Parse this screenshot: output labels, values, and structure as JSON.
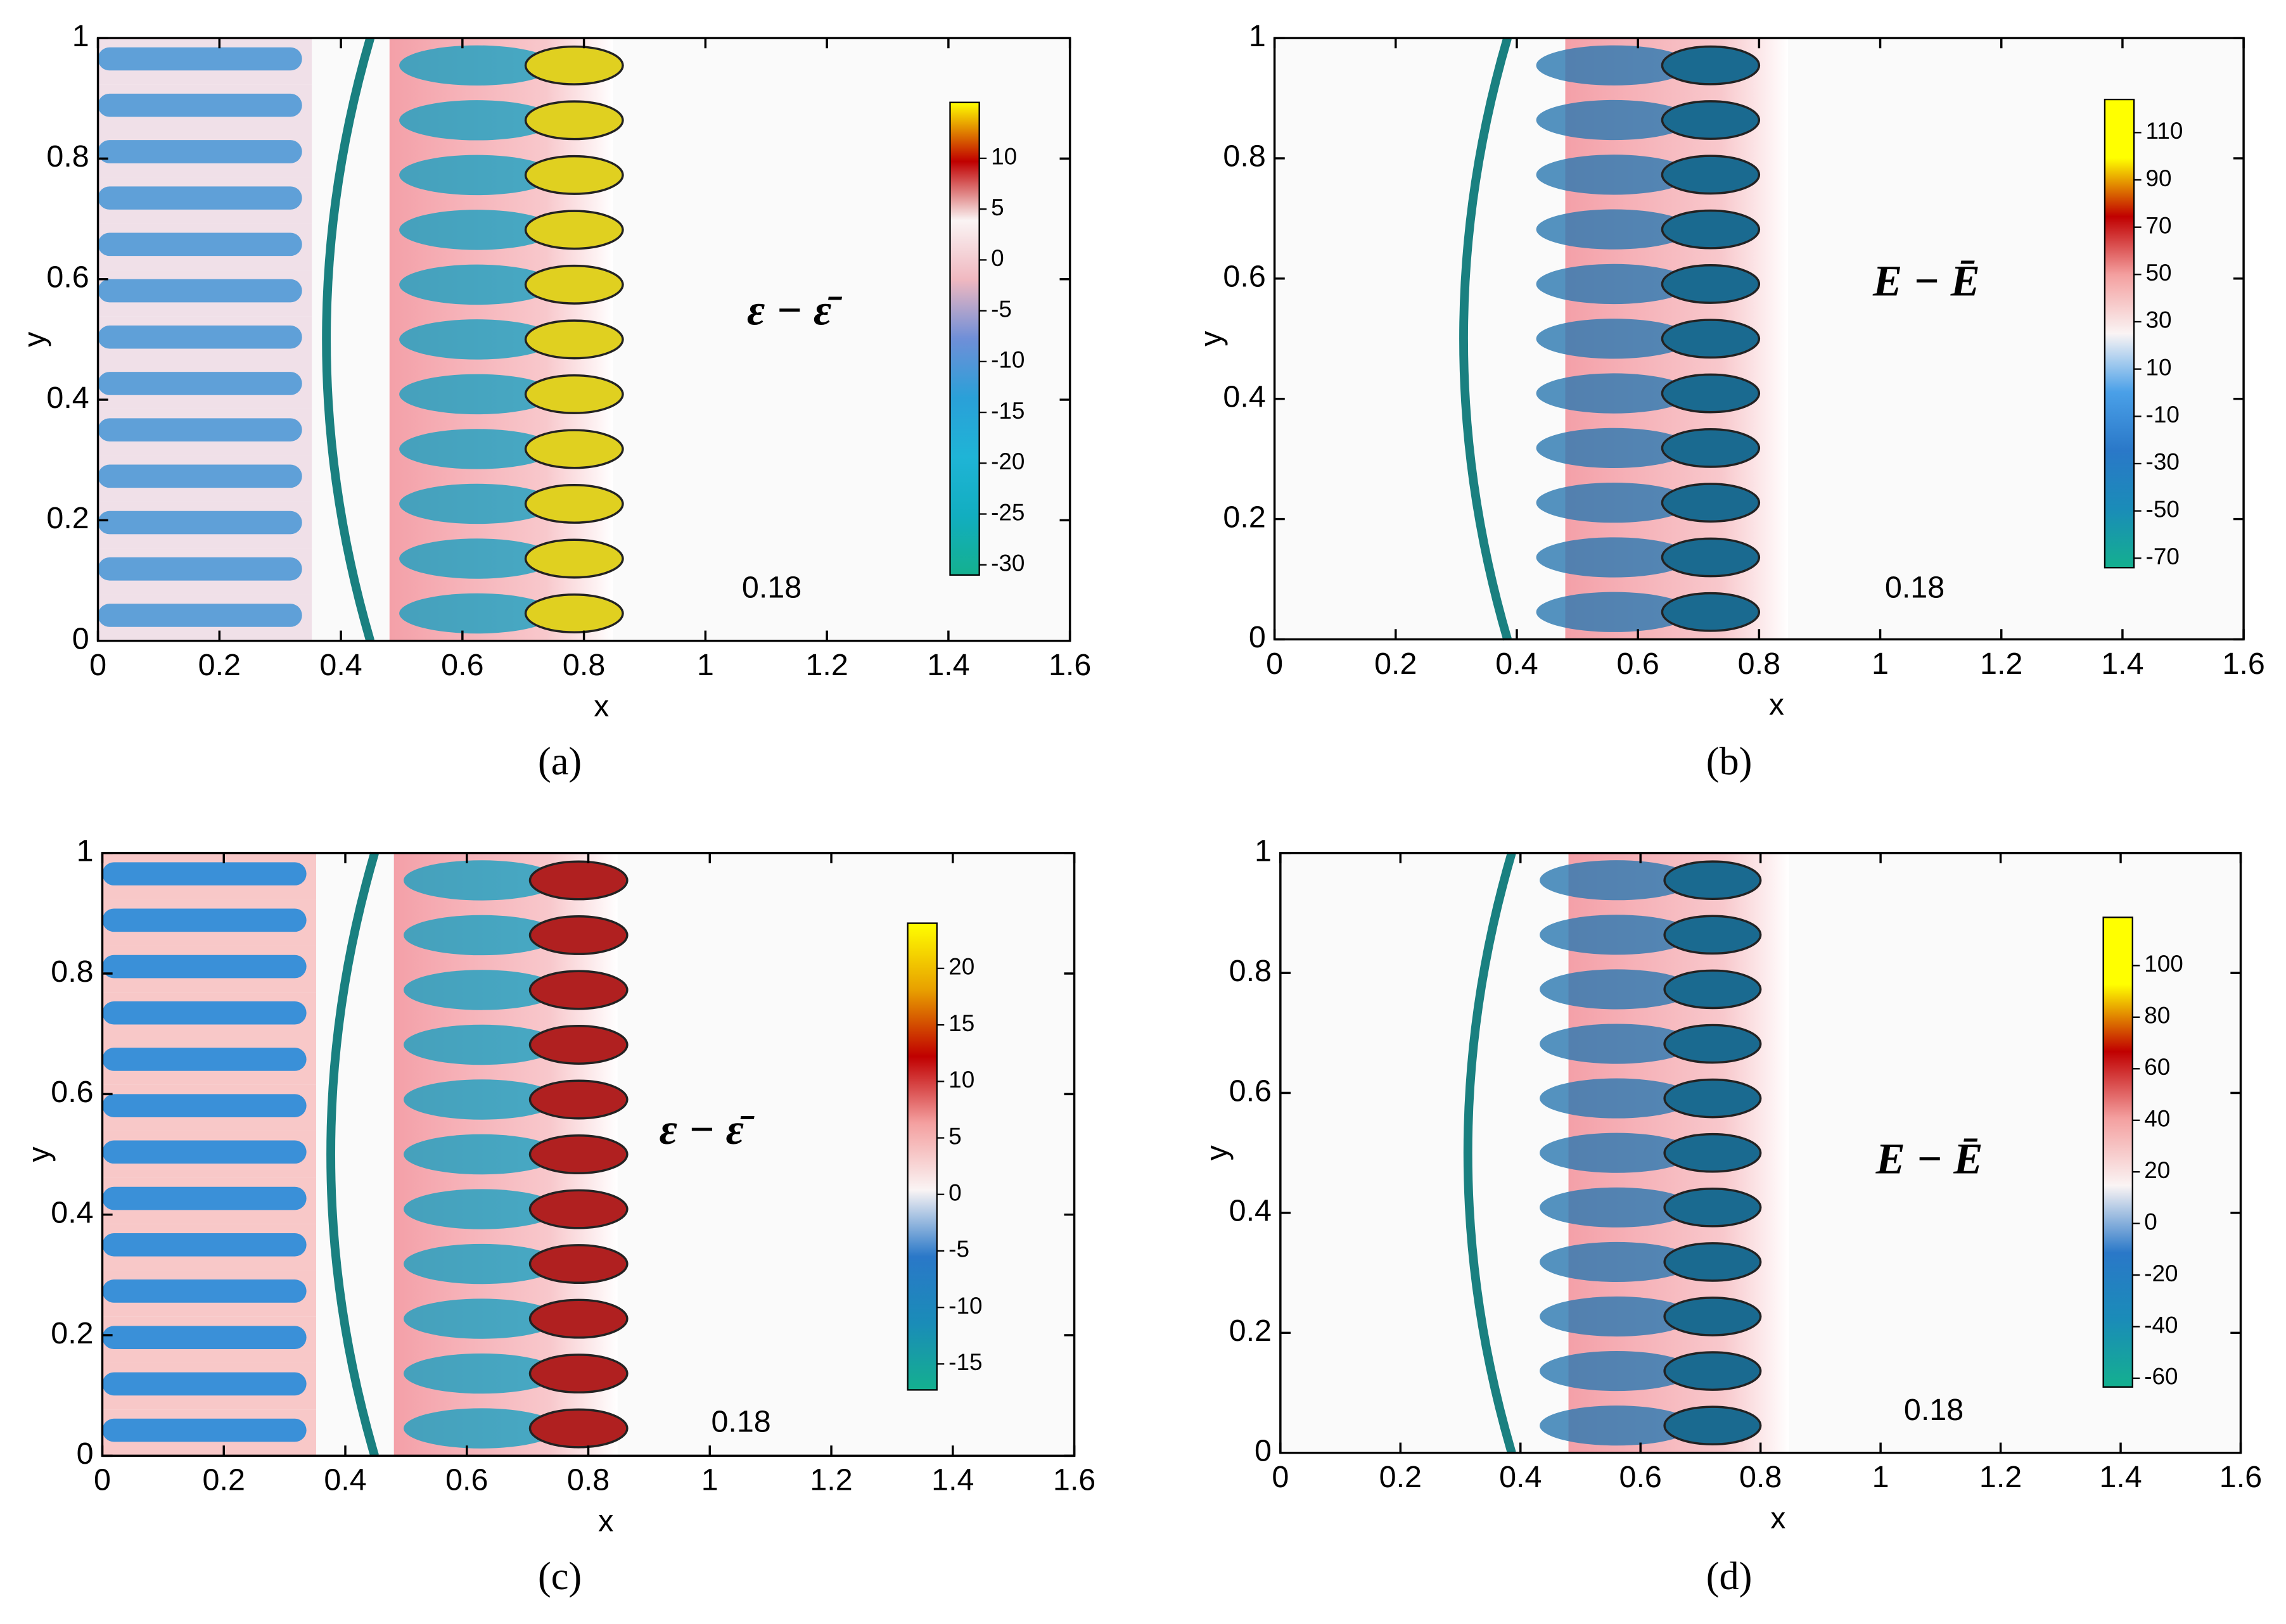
{
  "chart_data": [
    {
      "type": "contour",
      "title": "ε − ε̄",
      "annotation": "0.18",
      "caption": "(a)",
      "xlabel": "x",
      "ylabel": "y",
      "xlim": [
        0,
        1.6
      ],
      "ylim": [
        0,
        1
      ],
      "xticks": [
        0,
        0.2,
        0.4,
        0.6,
        0.8,
        1,
        1.2,
        1.4,
        1.6
      ],
      "yticks": [
        0,
        0.2,
        0.4,
        0.6,
        0.8,
        1
      ],
      "clim": [
        -31,
        15.5
      ],
      "cticks": [
        -30,
        -25,
        -20,
        -15,
        -10,
        -5,
        0,
        5,
        10
      ],
      "colormap": [
        "#14b08f",
        "#12aec0",
        "#1fb4d6",
        "#2aa0d8",
        "#6f8fd8",
        "#f0b8c0",
        "#faf4f4",
        "#c00000",
        "#ffff00"
      ]
    },
    {
      "type": "contour",
      "title": "E − Ē",
      "annotation": "0.18",
      "caption": "(b)",
      "xlabel": "x",
      "ylabel": "y",
      "xlim": [
        0,
        1.6
      ],
      "ylim": [
        0,
        1
      ],
      "xticks": [
        0,
        0.2,
        0.4,
        0.6,
        0.8,
        1,
        1.2,
        1.4,
        1.6
      ],
      "yticks": [
        0,
        0.2,
        0.4,
        0.6,
        0.8,
        1
      ],
      "clim": [
        -74,
        124
      ],
      "cticks": [
        -70,
        -50,
        -30,
        -10,
        10,
        30,
        50,
        70,
        90,
        110
      ],
      "colormap": [
        "#14b08f",
        "#1a8cb8",
        "#2a78c8",
        "#4aa0e8",
        "#faf4f4",
        "#f4a0a0",
        "#c00000",
        "#ffff00",
        "#ffff00"
      ]
    },
    {
      "type": "contour",
      "title": "ε − ε̄",
      "annotation": "0.18",
      "caption": "(c)",
      "xlabel": "x",
      "ylabel": "y",
      "xlim": [
        0,
        1.6
      ],
      "ylim": [
        0,
        1
      ],
      "xticks": [
        0,
        0.2,
        0.4,
        0.6,
        0.8,
        1,
        1.2,
        1.4,
        1.6
      ],
      "yticks": [
        0,
        0.2,
        0.4,
        0.6,
        0.8,
        1
      ],
      "clim": [
        -17.3,
        24
      ],
      "cticks": [
        -15,
        -10,
        -5,
        0,
        5,
        10,
        15,
        20
      ],
      "colormap": [
        "#14b08f",
        "#1a8cb8",
        "#2a78c8",
        "#faf4f4",
        "#f4a0a0",
        "#c00000",
        "#e8a000",
        "#ffff00"
      ]
    },
    {
      "type": "contour",
      "title": "E − Ē",
      "annotation": "0.18",
      "caption": "(d)",
      "xlabel": "x",
      "ylabel": "y",
      "xlim": [
        0,
        1.6
      ],
      "ylim": [
        0,
        1
      ],
      "xticks": [
        0,
        0.2,
        0.4,
        0.6,
        0.8,
        1,
        1.2,
        1.4,
        1.6
      ],
      "yticks": [
        0,
        0.2,
        0.4,
        0.6,
        0.8,
        1
      ],
      "clim": [
        -63.4,
        118.7
      ],
      "cticks": [
        -60,
        -40,
        -20,
        0,
        20,
        40,
        60,
        80,
        100
      ],
      "colormap": [
        "#14b08f",
        "#1a8cb8",
        "#2a78c8",
        "#faf4f4",
        "#f4a0a0",
        "#c00000",
        "#ffff00",
        "#ffff00"
      ]
    }
  ]
}
